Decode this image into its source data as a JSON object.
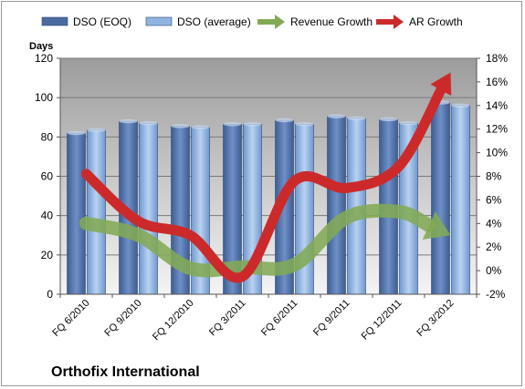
{
  "company": "Orthofix International",
  "chart_data": {
    "type": "bar",
    "title": "",
    "categories": [
      "FQ 6/2010",
      "FQ 9/2010",
      "FQ 12/2010",
      "FQ 3/2011",
      "FQ 6/2011",
      "FQ 9/2011",
      "FQ 12/2011",
      "FQ 3/2012"
    ],
    "y_axis": {
      "label": "Days",
      "min": 0,
      "max": 120,
      "step": 20,
      "ticks": [
        "0",
        "20",
        "40",
        "60",
        "80",
        "100",
        "120"
      ]
    },
    "y2_axis": {
      "label": "",
      "min": -2,
      "max": 18,
      "step": 2,
      "ticks": [
        "-2%",
        "0%",
        "2%",
        "4%",
        "6%",
        "8%",
        "10%",
        "12%",
        "14%",
        "16%",
        "18%"
      ]
    },
    "series": [
      {
        "name": "DSO (EOQ)",
        "type": "bar",
        "axis": "left",
        "color": "#4a6aa0",
        "values": [
          82,
          88,
          85.5,
          86.5,
          88.5,
          90.5,
          89,
          97.5
        ]
      },
      {
        "name": "DSO (average)",
        "type": "bar",
        "axis": "left",
        "color": "#8fb4df",
        "values": [
          83.5,
          87,
          85,
          86.5,
          86.5,
          89.5,
          87,
          96
        ]
      },
      {
        "name": "Revenue Growth",
        "type": "arrow-line",
        "axis": "right",
        "color": "#82aa55",
        "values": [
          4.0,
          3.0,
          0.2,
          0.3,
          0.5,
          4.5,
          5.0,
          3.0
        ]
      },
      {
        "name": "AR Growth",
        "type": "arrow-line",
        "axis": "right",
        "color": "#cc2a2a",
        "values": [
          8.2,
          4.2,
          3.0,
          -0.5,
          7.6,
          7.0,
          8.8,
          16.8
        ]
      }
    ],
    "grid": "horizontal",
    "legend": "top"
  }
}
